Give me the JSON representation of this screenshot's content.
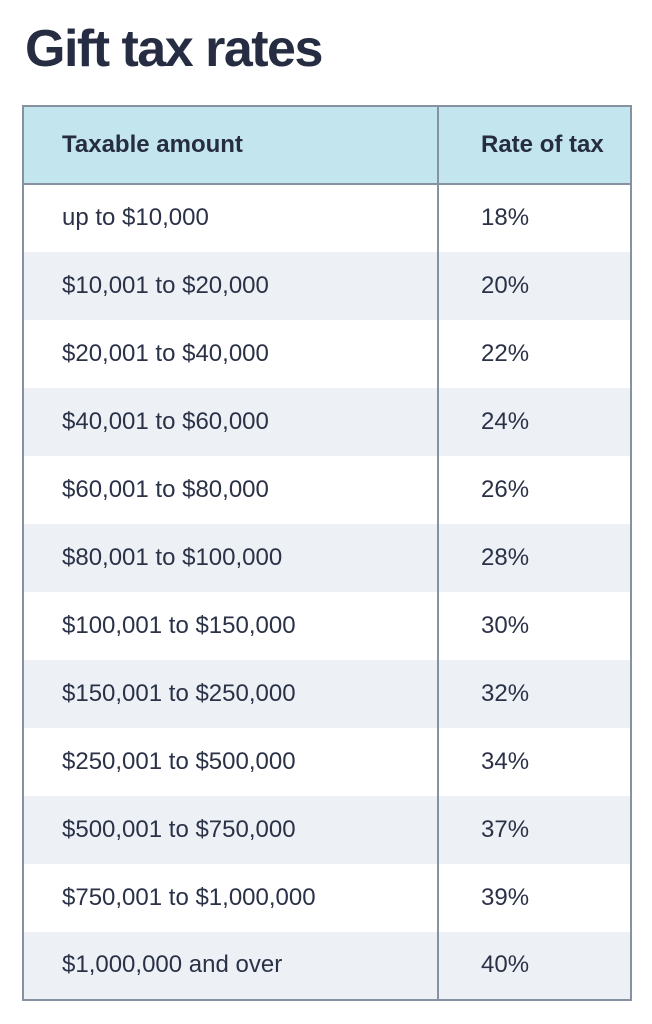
{
  "title": "Gift tax rates",
  "colors": {
    "title_text": "#262d42",
    "cell_text": "#2b3247",
    "header_bg": "#c3e6ee",
    "row_alt_bg": "#edf1f6",
    "row_bg": "#ffffff",
    "border": "#8691a2",
    "page_bg": "#ffffff"
  },
  "table": {
    "columns": [
      "Taxable amount",
      "Rate of tax"
    ],
    "rows": [
      {
        "taxable_amount": "up to $10,000",
        "rate_of_tax": "18%"
      },
      {
        "taxable_amount": "$10,001 to $20,000",
        "rate_of_tax": "20%"
      },
      {
        "taxable_amount": "$20,001 to $40,000",
        "rate_of_tax": "22%"
      },
      {
        "taxable_amount": "$40,001 to $60,000",
        "rate_of_tax": "24%"
      },
      {
        "taxable_amount": "$60,001 to $80,000",
        "rate_of_tax": "26%"
      },
      {
        "taxable_amount": "$80,001 to $100,000",
        "rate_of_tax": "28%"
      },
      {
        "taxable_amount": "$100,001 to $150,000",
        "rate_of_tax": "30%"
      },
      {
        "taxable_amount": "$150,001 to $250,000",
        "rate_of_tax": "32%"
      },
      {
        "taxable_amount": "$250,001 to $500,000",
        "rate_of_tax": "34%"
      },
      {
        "taxable_amount": "$500,001 to $750,000",
        "rate_of_tax": "37%"
      },
      {
        "taxable_amount": "$750,001 to $1,000,000",
        "rate_of_tax": "39%"
      },
      {
        "taxable_amount": "$1,000,000 and over",
        "rate_of_tax": "40%"
      }
    ]
  },
  "chart_data": {
    "type": "table",
    "title": "Gift tax rates",
    "columns": [
      "Taxable amount",
      "Rate of tax"
    ],
    "rows": [
      [
        "up to $10,000",
        "18%"
      ],
      [
        "$10,001 to $20,000",
        "20%"
      ],
      [
        "$20,001 to $40,000",
        "22%"
      ],
      [
        "$40,001 to $60,000",
        "24%"
      ],
      [
        "$60,001 to $80,000",
        "26%"
      ],
      [
        "$80,001 to $100,000",
        "28%"
      ],
      [
        "$100,001 to $150,000",
        "30%"
      ],
      [
        "$150,001 to $250,000",
        "32%"
      ],
      [
        "$250,001 to $500,000",
        "34%"
      ],
      [
        "$500,001 to $750,000",
        "37%"
      ],
      [
        "$750,001 to $1,000,000",
        "39%"
      ],
      [
        "$1,000,000 and over",
        "40%"
      ]
    ]
  }
}
